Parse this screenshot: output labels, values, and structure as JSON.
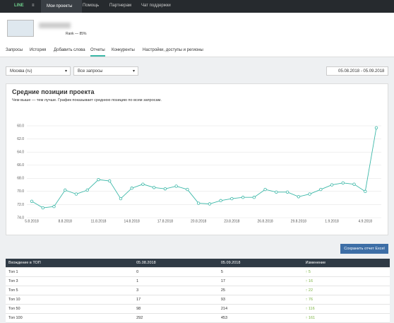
{
  "nav": {
    "logo": "LINE",
    "items": [
      "Мои проекты",
      "Помощь",
      "Партнерам",
      "Чат поддержки"
    ]
  },
  "project": {
    "rank": "Rank — 85%"
  },
  "tabs": [
    "Запросы",
    "История",
    "Добавить слова",
    "Отчеты",
    "Конкуренты",
    "Настройки, доступы и регионы"
  ],
  "filters": {
    "region": "Москва (ru)",
    "queries": "Все запросы",
    "dates": "05.08.2018 - 05.09.2018"
  },
  "chart_data": {
    "type": "line",
    "title": "Средние позиции проекта",
    "subtitle": "Чем выше — тем лучше. График показывает среднюю позицию по всем запросам.",
    "categories": [
      "5.8.2018",
      null,
      null,
      "8.8.2018",
      null,
      null,
      "11.8.2018",
      null,
      null,
      "14.8.2018",
      null,
      null,
      "17.8.2018",
      null,
      null,
      "20.8.2018",
      null,
      null,
      "23.8.2018",
      null,
      null,
      "26.8.2018",
      null,
      null,
      "29.8.2018",
      null,
      null,
      "1.9.2018",
      null,
      null,
      "4.9.2018",
      null
    ],
    "values": [
      71.5,
      72.5,
      72.3,
      69.8,
      70.4,
      69.8,
      68.2,
      68.4,
      71.1,
      69.5,
      68.9,
      69.4,
      69.6,
      69.2,
      69.7,
      71.8,
      71.9,
      71.4,
      71.1,
      70.9,
      70.9,
      69.7,
      70.1,
      70.1,
      70.8,
      70.4,
      69.7,
      69.0,
      68.7,
      68.9,
      70.0,
      60.3
    ],
    "color": "#3cb8a8",
    "ylim": [
      74,
      60
    ],
    "yticks": [
      {
        "value": 74,
        "label": "74.0"
      },
      {
        "value": 72,
        "label": "72.0"
      },
      {
        "value": 70,
        "label": "70.0"
      },
      {
        "value": 68,
        "label": "68.0"
      },
      {
        "value": 66,
        "label": "66.0"
      },
      {
        "value": 64,
        "label": "64.0"
      },
      {
        "value": 62,
        "label": "62.0"
      },
      {
        "value": 60,
        "label": "60.0"
      }
    ],
    "grid": true
  },
  "export_button": "Сохранить отчет Excel",
  "table": {
    "header": [
      "Вхождение в ТОП",
      "05.08.2018",
      "05.09.2018",
      "Изменение"
    ],
    "rows": [
      [
        "Топ 1",
        "0",
        "5",
        "5"
      ],
      [
        "Топ 3",
        "1",
        "17",
        "16"
      ],
      [
        "Топ 5",
        "3",
        "25",
        "22"
      ],
      [
        "Топ 10",
        "17",
        "93",
        "76"
      ],
      [
        "Топ 50",
        "98",
        "214",
        "116"
      ],
      [
        "Топ 100",
        "292",
        "453",
        "161"
      ]
    ]
  }
}
